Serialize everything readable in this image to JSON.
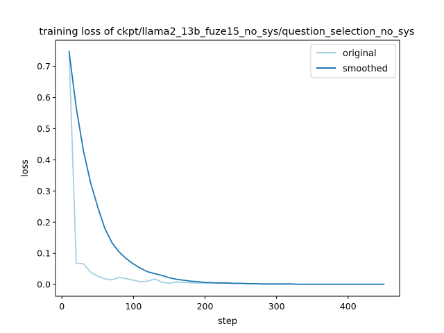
{
  "chart_data": {
    "type": "line",
    "title": "training loss of ckpt/llama2_13b_fuze15_no_sys/question_selection_no_sys",
    "xlabel": "step",
    "ylabel": "loss",
    "xlim": [
      -9,
      472
    ],
    "ylim": [
      -0.0374,
      0.7836
    ],
    "xticks": [
      0,
      100,
      200,
      300,
      400
    ],
    "xtick_labels": [
      "0",
      "100",
      "200",
      "300",
      "400"
    ],
    "yticks": [
      0.0,
      0.1,
      0.2,
      0.3,
      0.4,
      0.5,
      0.6,
      0.7
    ],
    "ytick_labels": [
      "0.0",
      "0.1",
      "0.2",
      "0.3",
      "0.4",
      "0.5",
      "0.6",
      "0.7"
    ],
    "grid": false,
    "legend_position": "upper right",
    "series": [
      {
        "name": "original",
        "color": "#a6cee3",
        "x": [
          10,
          20,
          30,
          40,
          50,
          60,
          70,
          80,
          90,
          100,
          110,
          120,
          130,
          140,
          150,
          160,
          170,
          180,
          190,
          200,
          210,
          220,
          230,
          240,
          250,
          260,
          270,
          280,
          290,
          300,
          310,
          320,
          330,
          340,
          350,
          360,
          370,
          380,
          390,
          400,
          410,
          420,
          430,
          440,
          450
        ],
        "values": [
          0.747,
          0.068,
          0.067,
          0.04,
          0.027,
          0.018,
          0.015,
          0.023,
          0.019,
          0.014,
          0.009,
          0.011,
          0.018,
          0.007,
          0.004,
          0.008,
          0.007,
          0.006,
          0.005,
          0.005,
          0.005,
          0.004,
          0.006,
          0.003,
          0.004,
          0.003,
          0.003,
          0.002,
          0.002,
          0.002,
          0.002,
          0.002,
          0.001,
          0.001,
          0.001,
          0.001,
          0.001,
          0.001,
          0.001,
          0.001,
          0.001,
          0.001,
          0.001,
          0.001,
          0.001
        ]
      },
      {
        "name": "smoothed",
        "color": "#1f78b4",
        "x": [
          10,
          20,
          30,
          40,
          50,
          60,
          70,
          80,
          90,
          100,
          110,
          120,
          130,
          140,
          150,
          160,
          170,
          180,
          190,
          200,
          210,
          220,
          230,
          240,
          250,
          260,
          270,
          280,
          290,
          300,
          310,
          320,
          330,
          340,
          350,
          360,
          370,
          380,
          390,
          400,
          410,
          420,
          430,
          440,
          450
        ],
        "values": [
          0.747,
          0.567,
          0.43,
          0.327,
          0.249,
          0.18,
          0.134,
          0.104,
          0.083,
          0.066,
          0.052,
          0.041,
          0.035,
          0.029,
          0.022,
          0.017,
          0.014,
          0.011,
          0.009,
          0.007,
          0.006,
          0.005,
          0.005,
          0.004,
          0.004,
          0.003,
          0.003,
          0.002,
          0.002,
          0.002,
          0.002,
          0.002,
          0.001,
          0.001,
          0.001,
          0.001,
          0.001,
          0.001,
          0.001,
          0.001,
          0.001,
          0.001,
          0.001,
          0.001,
          0.001
        ]
      }
    ]
  }
}
